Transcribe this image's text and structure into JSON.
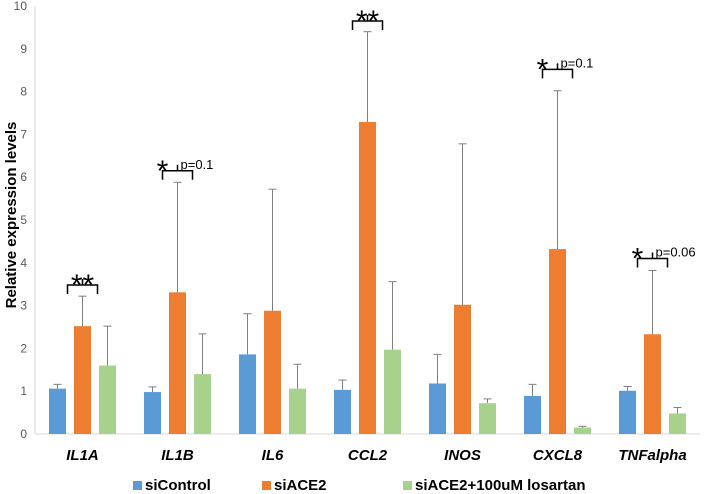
{
  "chart_data": {
    "type": "bar",
    "title": "",
    "xlabel": "",
    "ylabel": "Relative expression levels",
    "ylim": [
      0,
      10
    ],
    "yticks": [
      0,
      1,
      2,
      3,
      4,
      5,
      6,
      7,
      8,
      9,
      10
    ],
    "categories": [
      "IL1A",
      "IL1B",
      "IL6",
      "CCL2",
      "INOS",
      "CXCL8",
      "TNFalpha"
    ],
    "series": [
      {
        "name": "siControl",
        "color": "#5B9BD5",
        "values": [
          1.06,
          0.98,
          1.86,
          1.03,
          1.18,
          0.89,
          1.01
        ],
        "errors": [
          0.1,
          0.12,
          0.95,
          0.23,
          0.68,
          0.27,
          0.1
        ]
      },
      {
        "name": "siACE2",
        "color": "#ED7D31",
        "values": [
          2.52,
          3.31,
          2.88,
          7.29,
          3.02,
          4.32,
          2.33
        ],
        "errors": [
          0.7,
          2.57,
          2.84,
          2.11,
          3.76,
          3.7,
          1.49
        ]
      },
      {
        "name": "siACE2+100uM losartan",
        "color": "#A9D18E",
        "values": [
          1.6,
          1.4,
          1.06,
          1.97,
          0.72,
          0.15,
          0.48
        ],
        "errors": [
          0.92,
          0.94,
          0.57,
          1.59,
          0.1,
          0.03,
          0.14
        ]
      }
    ],
    "significance": [
      {
        "category_index": 0,
        "label": "**",
        "pvalue": "",
        "bracket_height": 3.48
      },
      {
        "category_index": 1,
        "label": "*",
        "pvalue": "p=0.1",
        "bracket_height": 6.15
      },
      {
        "category_index": 3,
        "label": "**",
        "pvalue": "",
        "bracket_height": 9.65
      },
      {
        "category_index": 5,
        "label": "*",
        "pvalue": "p=0.1",
        "bracket_height": 8.52
      },
      {
        "category_index": 6,
        "label": "*",
        "pvalue": "p=0.06",
        "bracket_height": 4.1
      }
    ],
    "legend_position": "bottom"
  }
}
